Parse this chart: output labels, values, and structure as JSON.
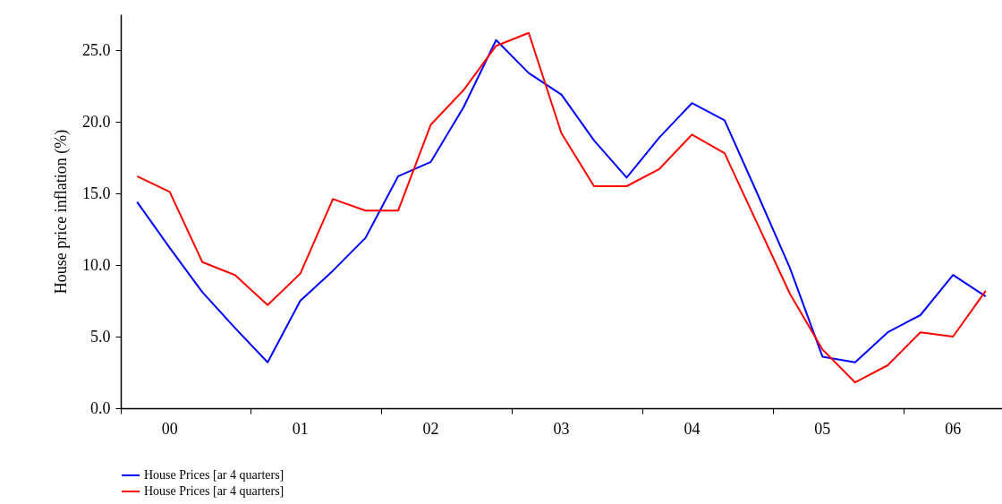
{
  "chart_data": {
    "type": "line",
    "ylabel": "House price inflation (%)",
    "categories": [
      null,
      "00",
      null,
      null,
      null,
      "01",
      null,
      null,
      null,
      "02",
      null,
      null,
      null,
      "03",
      null,
      null,
      null,
      "04",
      null,
      null,
      null,
      "05",
      null,
      null,
      null,
      "06",
      null
    ],
    "series": [
      {
        "name": "House Prices [ar 4 quarters]",
        "color": "#0000ff",
        "values": [
          14.4,
          11.2,
          8.1,
          5.6,
          3.2,
          7.5,
          9.6,
          11.9,
          16.2,
          17.2,
          21.0,
          25.7,
          23.4,
          21.9,
          18.7,
          16.1,
          18.9,
          21.3,
          20.1,
          15.0,
          9.8,
          3.6,
          3.2,
          5.3,
          6.5,
          9.3,
          7.8
        ]
      },
      {
        "name": "House Prices [ar 4 quarters]",
        "color": "#ff0000",
        "values": [
          16.2,
          15.1,
          10.2,
          9.3,
          7.2,
          9.4,
          14.6,
          13.8,
          13.8,
          19.8,
          22.2,
          25.3,
          26.2,
          19.2,
          15.5,
          15.5,
          16.7,
          19.1,
          17.8,
          12.9,
          8.0,
          4.1,
          1.8,
          3.0,
          5.3,
          5.0,
          8.2
        ]
      }
    ],
    "ylim": [
      0,
      27.5
    ],
    "yticks": [
      {
        "value": 0,
        "label": "0.0"
      },
      {
        "value": 5,
        "label": "5.0"
      },
      {
        "value": 10,
        "label": "10.0"
      },
      {
        "value": 15,
        "label": "15.0"
      },
      {
        "value": 20,
        "label": "20.0"
      },
      {
        "value": 25,
        "label": "25.0"
      }
    ],
    "grid": false,
    "legend": "bottom left",
    "marker": "none",
    "line_style": "solid"
  }
}
